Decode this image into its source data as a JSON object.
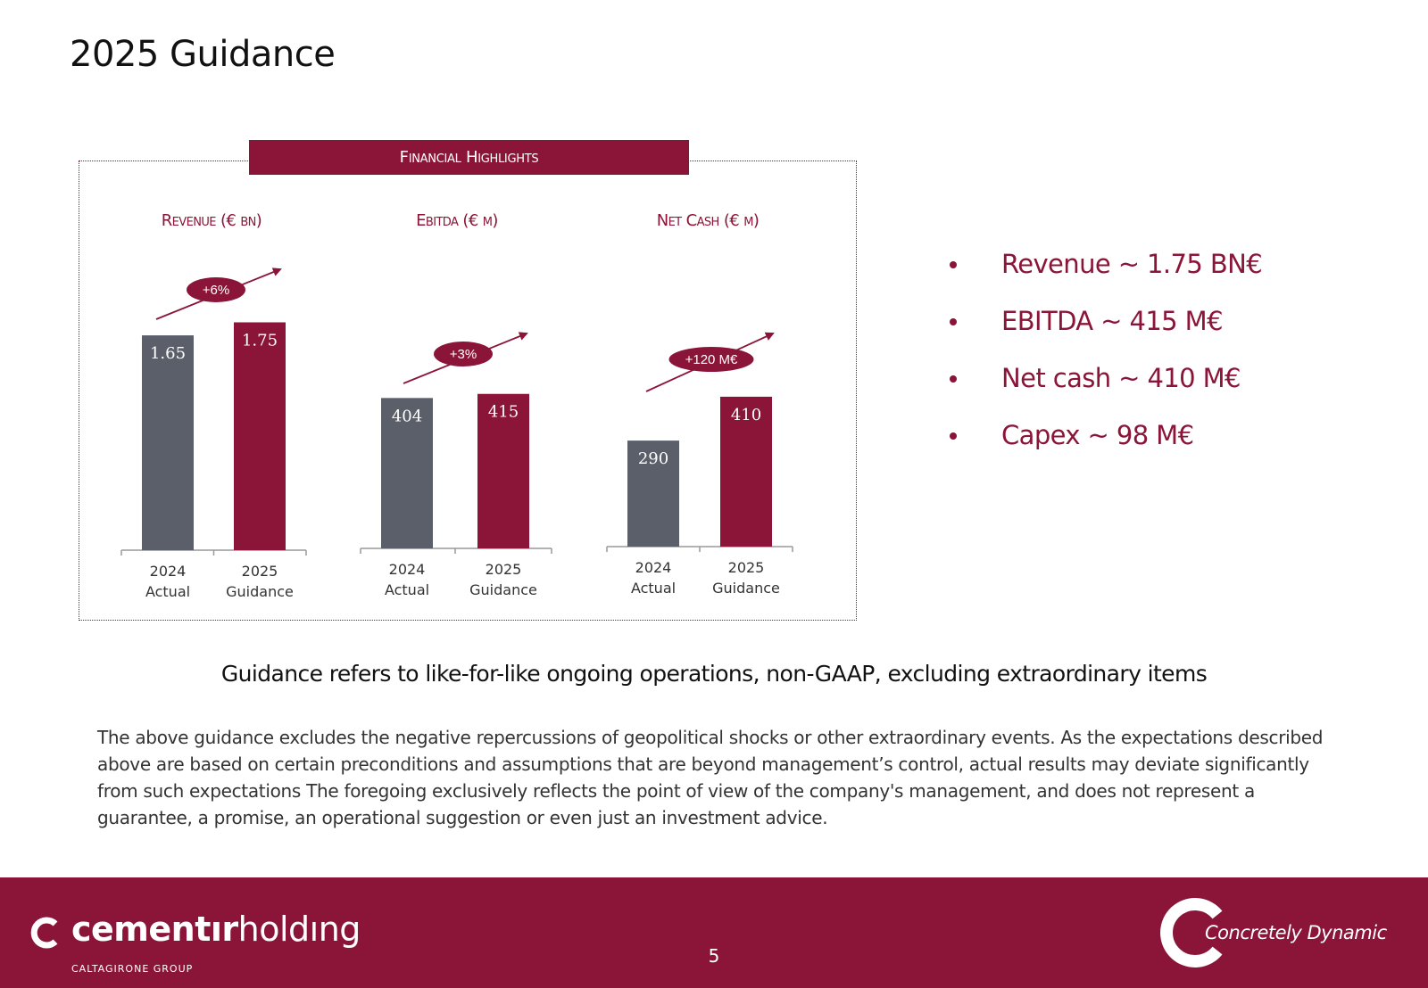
{
  "page": {
    "title": "2025 Guidance",
    "page_number": "5"
  },
  "panel": {
    "header": "Financial Highlights"
  },
  "colors": {
    "brand": "#8a1538",
    "actual": "#5a5f69"
  },
  "chart_data": [
    {
      "type": "bar",
      "title": "Revenue (€ bn)",
      "categories": [
        "2024 Actual",
        "2025 Guidance"
      ],
      "category_lines": [
        [
          "2024",
          "Actual"
        ],
        [
          "2025",
          "Guidance"
        ]
      ],
      "values": [
        1.65,
        1.75
      ],
      "labels": [
        "1.65",
        "1.75"
      ],
      "change_label": "+6%"
    },
    {
      "type": "bar",
      "title": "Ebitda (€ m)",
      "categories": [
        "2024 Actual",
        "2025 Guidance"
      ],
      "category_lines": [
        [
          "2024",
          "Actual"
        ],
        [
          "2025",
          "Guidance"
        ]
      ],
      "values": [
        404,
        415
      ],
      "labels": [
        "404",
        "415"
      ],
      "change_label": "+3%"
    },
    {
      "type": "bar",
      "title": "Net Cash (€ m)",
      "categories": [
        "2024 Actual",
        "2025 Guidance"
      ],
      "category_lines": [
        [
          "2024",
          "Actual"
        ],
        [
          "2025",
          "Guidance"
        ]
      ],
      "values": [
        290,
        410
      ],
      "labels": [
        "290",
        "410"
      ],
      "change_label": "+120 M€"
    }
  ],
  "bullets": [
    "Revenue ~ 1.75 BN€",
    "EBITDA ~ 415 M€",
    "Net cash ~ 410 M€",
    "Capex ~ 98 M€"
  ],
  "note": "Guidance refers to like-for-like ongoing operations, non-GAAP, excluding extraordinary items",
  "disclaimer": "The above guidance excludes the negative repercussions of geopolitical shocks or other extraordinary events. As the expectations described above are based on certain preconditions and assumptions that are beyond management’s control, actual results may deviate significantly from such expectations The foregoing exclusively reflects the point of view of the company's management, and does not represent a guarantee, a promise, an operational suggestion or even just an investment advice.",
  "footer": {
    "brand_bold": "cementır",
    "brand_light": "holdıng",
    "brand_sub": "CALTAGIRONE GROUP",
    "tagline": "Concretely Dynamic"
  }
}
